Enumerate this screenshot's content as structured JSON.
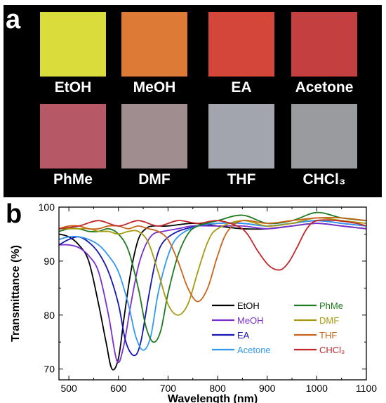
{
  "panel_a": {
    "letter": "a",
    "swatches": [
      {
        "label": "EtOH",
        "color": "#d9dc3a"
      },
      {
        "label": "MeOH",
        "color": "#dc7a36"
      },
      {
        "label": "EA",
        "color": "#d5463a"
      },
      {
        "label": "Acetone",
        "color": "#c43f3f"
      },
      {
        "label": "PhMe",
        "color": "#b65866"
      },
      {
        "label": "DMF",
        "color": "#a08d8f"
      },
      {
        "label": "THF",
        "color": "#a2a5ad"
      },
      {
        "label": "CHCl₃",
        "color": "#9a9b9e"
      }
    ]
  },
  "chart_data": {
    "type": "line",
    "panel_letter": "b",
    "xlabel": "Wavelength (nm)",
    "ylabel": "Transmittance (%)",
    "xlim": [
      480,
      1100
    ],
    "ylim": [
      68,
      100
    ],
    "xticks": [
      500,
      600,
      700,
      800,
      900,
      1000,
      1100
    ],
    "yticks": [
      70,
      80,
      90,
      100
    ],
    "grid": false,
    "legend_position": "lower-right",
    "series": [
      {
        "name": "EtOH",
        "color": "#000000",
        "x": [
          480,
          500,
          520,
          540,
          560,
          575,
          587,
          600,
          612,
          625,
          640,
          655,
          670,
          700,
          750,
          800,
          850,
          900,
          950,
          1000,
          1050,
          1100
        ],
        "y": [
          95,
          94.5,
          93,
          90,
          82,
          75,
          70,
          72,
          80,
          88,
          94,
          96,
          96.5,
          96.5,
          97,
          96.5,
          96,
          96,
          96.5,
          97,
          96.5,
          96
        ]
      },
      {
        "name": "MeOH",
        "color": "#7b2fd0",
        "x": [
          480,
          500,
          520,
          540,
          560,
          580,
          597,
          610,
          625,
          640,
          655,
          670,
          690,
          720,
          750,
          800,
          850,
          900,
          950,
          1000,
          1050,
          1100
        ],
        "y": [
          93,
          93,
          92.5,
          91,
          88,
          80,
          71.5,
          74,
          82,
          89,
          93,
          95,
          95.5,
          96,
          96.5,
          96.5,
          96.5,
          96,
          96.5,
          97,
          96.5,
          96
        ]
      },
      {
        "name": "EA",
        "color": "#1515b0",
        "x": [
          480,
          500,
          520,
          540,
          560,
          580,
          600,
          615,
          632,
          645,
          660,
          675,
          690,
          720,
          760,
          800,
          850,
          900,
          950,
          1000,
          1050,
          1100
        ],
        "y": [
          93,
          94,
          94.5,
          93.5,
          91.5,
          88,
          82,
          75,
          72.5,
          75,
          83,
          90,
          93.5,
          95.5,
          96.5,
          97,
          97,
          96.5,
          97,
          97.5,
          97,
          96.5
        ]
      },
      {
        "name": "Acetone",
        "color": "#3399ee",
        "x": [
          480,
          500,
          520,
          540,
          560,
          580,
          600,
          620,
          635,
          650,
          665,
          680,
          700,
          720,
          760,
          800,
          850,
          900,
          950,
          1000,
          1050,
          1100
        ],
        "y": [
          94,
          94.5,
          94.5,
          94,
          93,
          91,
          88,
          82,
          76,
          73.5,
          76,
          84,
          91,
          94.5,
          96.5,
          97,
          97,
          96.5,
          97,
          97.5,
          97,
          96.5
        ]
      },
      {
        "name": "PhMe",
        "color": "#1e7a1e",
        "x": [
          480,
          500,
          520,
          540,
          560,
          580,
          600,
          620,
          640,
          655,
          670,
          685,
          700,
          720,
          740,
          760,
          800,
          850,
          900,
          950,
          1000,
          1050,
          1100
        ],
        "y": [
          95.5,
          96,
          96,
          95.5,
          95.5,
          96,
          95,
          92,
          85,
          78,
          75,
          77,
          84,
          91,
          95,
          96.5,
          97.5,
          98.5,
          97,
          97.5,
          99,
          98,
          97.5
        ]
      },
      {
        "name": "DMF",
        "color": "#a89a10",
        "x": [
          480,
          500,
          520,
          540,
          560,
          580,
          600,
          620,
          640,
          660,
          680,
          700,
          720,
          740,
          760,
          780,
          800,
          850,
          900,
          950,
          1000,
          1050,
          1100
        ],
        "y": [
          96,
          96,
          96,
          96,
          95.5,
          95.5,
          95,
          95.5,
          95.5,
          93.5,
          88,
          82,
          80,
          82,
          88,
          93.5,
          96,
          97.5,
          96.5,
          97,
          98,
          97.5,
          97
        ]
      },
      {
        "name": "THF",
        "color": "#c8641a",
        "x": [
          480,
          500,
          520,
          540,
          560,
          580,
          600,
          620,
          640,
          660,
          680,
          700,
          720,
          740,
          760,
          780,
          800,
          820,
          850,
          900,
          950,
          1000,
          1050,
          1100
        ],
        "y": [
          96,
          96.5,
          96.5,
          96,
          96,
          96.5,
          96.5,
          96,
          96.5,
          96,
          95.5,
          94,
          90,
          85,
          82.5,
          85,
          91,
          95.5,
          97.5,
          97,
          97.5,
          98,
          98,
          97.5
        ]
      },
      {
        "name": "CHCl₃",
        "color": "#c0282a",
        "x": [
          480,
          520,
          560,
          600,
          640,
          680,
          720,
          760,
          800,
          840,
          860,
          880,
          900,
          915,
          930,
          945,
          960,
          980,
          1000,
          1040,
          1080,
          1100
        ],
        "y": [
          96,
          96.5,
          97.5,
          96.5,
          97.5,
          96.5,
          97.5,
          97,
          97.5,
          96.5,
          95,
          92,
          89.5,
          88.5,
          88.5,
          90,
          92.5,
          96,
          97.5,
          97.5,
          97,
          96.5
        ]
      }
    ]
  }
}
